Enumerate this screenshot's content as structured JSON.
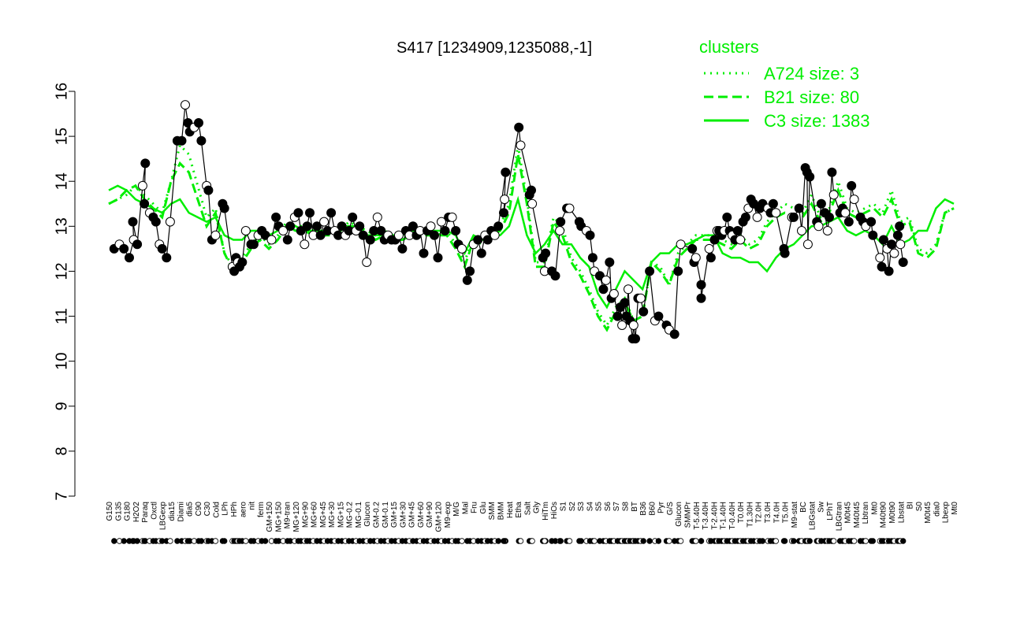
{
  "chart_data": {
    "type": "line",
    "title": "S417 [1234909,1235088,-1]",
    "xlabel": "",
    "ylabel": "",
    "ylim": [
      7,
      16
    ],
    "yticks": [
      7,
      8,
      9,
      10,
      11,
      12,
      13,
      14,
      15,
      16
    ],
    "xticks": [
      "G150",
      "G135",
      "G180",
      "H2O2",
      "Paraq",
      "Oxctl",
      "LBGexp",
      "dia15",
      "Diami",
      "dia5",
      "C90",
      "C30",
      "Cold",
      "LPh",
      "HPh",
      "aero",
      "nit",
      "ferm",
      "GM+150",
      "MG+150",
      "M9-tran",
      "MG+120",
      "MG+90",
      "MG+60",
      "MG+45",
      "MG+30",
      "MG+15",
      "MG-0.2",
      "MG-0.1",
      "Glucon",
      "GM-0.2",
      "GM-0.1",
      "GM+15",
      "GM+30",
      "GM+45",
      "GM+60",
      "GM+90",
      "GM+120",
      "M9-exp",
      "M/G",
      "Mal",
      "Fru",
      "Glu",
      "SMM",
      "BMM",
      "Heat",
      "Etha",
      "Salt",
      "Gly",
      "HiTm",
      "HiOs",
      "S1",
      "S2",
      "S3",
      "S4",
      "S5",
      "S6",
      "S7",
      "S8",
      "BT",
      "B36",
      "B60",
      "Pyr",
      "G/S",
      "Glucon",
      "SMMPr",
      "T-5.40H",
      "T-3.40H",
      "T-2.40H",
      "T-1.40H",
      "T-0.40H",
      "T0.0H",
      "T1.30H",
      "T2.0H",
      "T3.0H",
      "T4.0H",
      "T5.0H",
      "M9-stat",
      "BC",
      "LBGstat",
      "Sw",
      "LPhT",
      "LBGtran",
      "M0t45",
      "M40t45",
      "Lbtran",
      "Mt0",
      "M40t90",
      "M0t90",
      "Lbstat",
      "BI",
      "S0",
      "M0t45",
      "dia0",
      "Lbexp",
      "Mt0"
    ],
    "series": [
      {
        "name": "A724 size: 3",
        "style": "dotted",
        "values": [
          13.5,
          13.6,
          13.7,
          13.9,
          13.7,
          13.5,
          13.3,
          14.0,
          14.8,
          14.6,
          13.9,
          13.2,
          13.4,
          12.4,
          12.1,
          12.3,
          12.6,
          12.8,
          12.6,
          12.8,
          13.1,
          13.0,
          13.0,
          12.9,
          12.9,
          12.9,
          12.9,
          13.1,
          13.0,
          12.9,
          12.8,
          12.9,
          12.8,
          12.8,
          12.9,
          12.9,
          12.9,
          12.8,
          12.9,
          12.6,
          12.2,
          12.8,
          12.7,
          12.8,
          13.0,
          13.5,
          14.8,
          13.6,
          12.2,
          12.2,
          13.2,
          13.0,
          12.3,
          12.0,
          11.6,
          11.1,
          10.8,
          11.2,
          11.4,
          10.9,
          11.0,
          12.2,
          12.1,
          11.7,
          12.4,
          12.6,
          12.8,
          12.8,
          12.8,
          12.7,
          12.6,
          12.8,
          12.6,
          12.7,
          13.1,
          13.3,
          13.5,
          13.4,
          13.3,
          13.7,
          13.2,
          13.4,
          14.0,
          13.4,
          13.3,
          13.4,
          13.5,
          13.3,
          13.8,
          13.1,
          13.2,
          12.5,
          12.4,
          12.6,
          13.3,
          13.4
        ]
      },
      {
        "name": "B21 size: 80",
        "style": "dashed",
        "values": [
          13.5,
          13.6,
          13.8,
          13.9,
          13.6,
          13.4,
          13.2,
          14.0,
          14.4,
          14.2,
          13.6,
          13.0,
          13.3,
          12.4,
          12.0,
          12.2,
          12.5,
          12.7,
          12.5,
          12.7,
          13.0,
          12.9,
          12.9,
          12.8,
          12.8,
          12.8,
          12.9,
          13.0,
          12.9,
          12.8,
          12.7,
          12.8,
          12.7,
          12.7,
          12.8,
          12.8,
          12.8,
          12.8,
          12.8,
          12.5,
          12.1,
          12.7,
          12.6,
          12.8,
          12.9,
          13.3,
          14.6,
          13.5,
          12.1,
          12.1,
          13.1,
          12.8,
          12.2,
          11.9,
          11.5,
          11.0,
          10.7,
          11.1,
          11.3,
          10.9,
          11.0,
          12.2,
          12.0,
          11.7,
          12.3,
          12.5,
          12.7,
          12.7,
          12.7,
          12.6,
          12.5,
          12.7,
          12.5,
          12.6,
          13.0,
          13.2,
          13.3,
          13.2,
          13.2,
          13.5,
          13.1,
          13.3,
          13.8,
          13.3,
          13.2,
          13.3,
          13.4,
          13.2,
          13.6,
          13.0,
          13.1,
          12.4,
          12.3,
          12.5,
          13.3,
          13.4
        ]
      },
      {
        "name": "C3 size: 1383",
        "style": "solid",
        "values": [
          13.8,
          13.9,
          13.8,
          13.6,
          13.5,
          13.4,
          13.3,
          13.5,
          13.6,
          13.3,
          13.2,
          13.1,
          13.2,
          12.8,
          12.7,
          12.7,
          12.9,
          12.9,
          12.8,
          12.9,
          13.0,
          13.0,
          12.9,
          12.9,
          12.9,
          12.9,
          13.0,
          13.0,
          13.0,
          12.8,
          12.8,
          12.8,
          12.8,
          12.8,
          12.9,
          12.9,
          12.9,
          12.9,
          12.9,
          12.8,
          12.4,
          12.8,
          12.7,
          12.8,
          12.8,
          13.0,
          13.6,
          12.8,
          12.4,
          12.6,
          12.9,
          12.6,
          12.6,
          12.3,
          12.1,
          11.5,
          11.2,
          11.6,
          12.0,
          11.8,
          11.6,
          12.2,
          12.4,
          12.4,
          12.6,
          12.6,
          12.7,
          12.8,
          12.8,
          12.4,
          12.3,
          12.3,
          12.2,
          12.2,
          12.0,
          12.3,
          12.5,
          12.6,
          12.8,
          13.0,
          13.0,
          13.1,
          13.2,
          12.9,
          12.8,
          12.9,
          12.8,
          12.6,
          13.0,
          12.6,
          12.7,
          12.9,
          12.9,
          13.4,
          13.6,
          13.5
        ]
      }
    ],
    "points": [
      {
        "x": 0.6,
        "y": 12.5
      },
      {
        "x": 1.2,
        "y": 12.6
      },
      {
        "x": 1.7,
        "y": 12.5
      },
      {
        "x": 2.3,
        "y": 12.3
      },
      {
        "x": 2.8,
        "y": 12.7
      },
      {
        "x": 2.7,
        "y": 13.1
      },
      {
        "x": 3.2,
        "y": 12.6
      },
      {
        "x": 3.8,
        "y": 13.9
      },
      {
        "x": 4.1,
        "y": 14.4
      },
      {
        "x": 4.0,
        "y": 13.5
      },
      {
        "x": 4.6,
        "y": 13.3
      },
      {
        "x": 5.0,
        "y": 13.2
      },
      {
        "x": 5.3,
        "y": 13.1
      },
      {
        "x": 5.7,
        "y": 12.6
      },
      {
        "x": 6.0,
        "y": 12.5
      },
      {
        "x": 6.5,
        "y": 12.3
      },
      {
        "x": 6.9,
        "y": 13.1
      },
      {
        "x": 7.7,
        "y": 14.9
      },
      {
        "x": 8.2,
        "y": 14.9
      },
      {
        "x": 8.6,
        "y": 15.7
      },
      {
        "x": 8.9,
        "y": 15.3
      },
      {
        "x": 9.1,
        "y": 15.1
      },
      {
        "x": 9.6,
        "y": 15.2
      },
      {
        "x": 10.1,
        "y": 15.3
      },
      {
        "x": 10.4,
        "y": 14.9
      },
      {
        "x": 11.0,
        "y": 13.9
      },
      {
        "x": 11.2,
        "y": 13.8
      },
      {
        "x": 11.6,
        "y": 12.7
      },
      {
        "x": 12.0,
        "y": 12.8
      },
      {
        "x": 12.8,
        "y": 13.5
      },
      {
        "x": 13.0,
        "y": 13.4
      },
      {
        "x": 13.9,
        "y": 12.1
      },
      {
        "x": 14.1,
        "y": 12.0
      },
      {
        "x": 14.3,
        "y": 12.3
      },
      {
        "x": 14.5,
        "y": 12.2
      },
      {
        "x": 14.7,
        "y": 12.1
      },
      {
        "x": 15.0,
        "y": 12.2
      },
      {
        "x": 15.4,
        "y": 12.9
      },
      {
        "x": 16.0,
        "y": 12.6
      },
      {
        "x": 16.3,
        "y": 12.6
      },
      {
        "x": 16.8,
        "y": 12.8
      },
      {
        "x": 17.2,
        "y": 12.9
      },
      {
        "x": 17.6,
        "y": 12.8
      },
      {
        "x": 18.3,
        "y": 12.7
      },
      {
        "x": 18.8,
        "y": 13.2
      },
      {
        "x": 19.1,
        "y": 13.0
      },
      {
        "x": 19.6,
        "y": 12.9
      },
      {
        "x": 20.1,
        "y": 12.7
      },
      {
        "x": 20.4,
        "y": 13.0
      },
      {
        "x": 20.9,
        "y": 13.2
      },
      {
        "x": 21.3,
        "y": 13.3
      },
      {
        "x": 21.6,
        "y": 12.9
      },
      {
        "x": 22.0,
        "y": 12.6
      },
      {
        "x": 22.3,
        "y": 13.0
      },
      {
        "x": 22.6,
        "y": 13.3
      },
      {
        "x": 23.0,
        "y": 12.8
      },
      {
        "x": 23.4,
        "y": 13.0
      },
      {
        "x": 23.8,
        "y": 12.8
      },
      {
        "x": 24.2,
        "y": 13.1
      },
      {
        "x": 24.6,
        "y": 12.9
      },
      {
        "x": 25.0,
        "y": 13.3
      },
      {
        "x": 25.4,
        "y": 12.9
      },
      {
        "x": 25.8,
        "y": 12.8
      },
      {
        "x": 26.2,
        "y": 13.0
      },
      {
        "x": 26.6,
        "y": 12.8
      },
      {
        "x": 27.0,
        "y": 12.9
      },
      {
        "x": 27.4,
        "y": 13.2
      },
      {
        "x": 27.8,
        "y": 12.9
      },
      {
        "x": 28.2,
        "y": 13.0
      },
      {
        "x": 28.6,
        "y": 12.8
      },
      {
        "x": 29.0,
        "y": 12.2
      },
      {
        "x": 29.4,
        "y": 12.7
      },
      {
        "x": 29.8,
        "y": 12.9
      },
      {
        "x": 30.2,
        "y": 13.2
      },
      {
        "x": 30.6,
        "y": 12.9
      },
      {
        "x": 31.0,
        "y": 12.7
      },
      {
        "x": 31.4,
        "y": 12.8
      },
      {
        "x": 31.8,
        "y": 12.7
      },
      {
        "x": 32.2,
        "y": 12.7
      },
      {
        "x": 32.6,
        "y": 12.8
      },
      {
        "x": 33.0,
        "y": 12.5
      },
      {
        "x": 33.4,
        "y": 12.9
      },
      {
        "x": 33.8,
        "y": 12.8
      },
      {
        "x": 34.2,
        "y": 13.0
      },
      {
        "x": 34.6,
        "y": 12.8
      },
      {
        "x": 35.0,
        "y": 12.9
      },
      {
        "x": 35.4,
        "y": 12.4
      },
      {
        "x": 35.8,
        "y": 12.9
      },
      {
        "x": 36.2,
        "y": 13.0
      },
      {
        "x": 36.6,
        "y": 12.8
      },
      {
        "x": 37.0,
        "y": 12.3
      },
      {
        "x": 37.4,
        "y": 13.1
      },
      {
        "x": 37.8,
        "y": 12.9
      },
      {
        "x": 38.2,
        "y": 13.2
      },
      {
        "x": 38.6,
        "y": 13.2
      },
      {
        "x": 39.0,
        "y": 12.9
      },
      {
        "x": 39.3,
        "y": 12.6
      },
      {
        "x": 39.7,
        "y": 12.5
      },
      {
        "x": 40.3,
        "y": 11.8
      },
      {
        "x": 40.6,
        "y": 12.0
      },
      {
        "x": 41.0,
        "y": 12.6
      },
      {
        "x": 41.5,
        "y": 12.7
      },
      {
        "x": 41.9,
        "y": 12.4
      },
      {
        "x": 42.3,
        "y": 12.8
      },
      {
        "x": 42.6,
        "y": 12.7
      },
      {
        "x": 43.0,
        "y": 12.9
      },
      {
        "x": 43.4,
        "y": 12.8
      },
      {
        "x": 43.8,
        "y": 13.0
      },
      {
        "x": 44.6,
        "y": 14.2
      },
      {
        "x": 44.5,
        "y": 13.6
      },
      {
        "x": 44.4,
        "y": 13.3
      },
      {
        "x": 46.1,
        "y": 15.2
      },
      {
        "x": 46.3,
        "y": 14.8
      },
      {
        "x": 47.5,
        "y": 13.8
      },
      {
        "x": 47.3,
        "y": 13.7
      },
      {
        "x": 47.6,
        "y": 13.5
      },
      {
        "x": 48.8,
        "y": 12.3
      },
      {
        "x": 49.1,
        "y": 12.4
      },
      {
        "x": 49.0,
        "y": 12.0
      },
      {
        "x": 49.8,
        "y": 12.0
      },
      {
        "x": 50.2,
        "y": 11.9
      },
      {
        "x": 50.7,
        "y": 12.9
      },
      {
        "x": 50.8,
        "y": 13.1
      },
      {
        "x": 51.5,
        "y": 13.4
      },
      {
        "x": 51.8,
        "y": 13.4
      },
      {
        "x": 52.9,
        "y": 13.1
      },
      {
        "x": 53.1,
        "y": 13.0
      },
      {
        "x": 53.7,
        "y": 12.9
      },
      {
        "x": 54.1,
        "y": 12.8
      },
      {
        "x": 54.4,
        "y": 12.3
      },
      {
        "x": 54.6,
        "y": 12.0
      },
      {
        "x": 55.2,
        "y": 11.9
      },
      {
        "x": 55.6,
        "y": 11.6
      },
      {
        "x": 55.9,
        "y": 11.8
      },
      {
        "x": 56.3,
        "y": 12.2
      },
      {
        "x": 56.5,
        "y": 11.4
      },
      {
        "x": 56.8,
        "y": 11.5
      },
      {
        "x": 57.2,
        "y": 11.0
      },
      {
        "x": 57.5,
        "y": 11.2
      },
      {
        "x": 57.7,
        "y": 10.8
      },
      {
        "x": 58.0,
        "y": 11.3
      },
      {
        "x": 58.2,
        "y": 11.0
      },
      {
        "x": 58.4,
        "y": 11.6
      },
      {
        "x": 58.6,
        "y": 10.9
      },
      {
        "x": 58.9,
        "y": 10.5
      },
      {
        "x": 59.0,
        "y": 10.8
      },
      {
        "x": 59.2,
        "y": 10.5
      },
      {
        "x": 59.5,
        "y": 11.4
      },
      {
        "x": 59.8,
        "y": 11.4
      },
      {
        "x": 60.1,
        "y": 11.1
      },
      {
        "x": 60.8,
        "y": 12.0
      },
      {
        "x": 61.4,
        "y": 10.9
      },
      {
        "x": 61.8,
        "y": 11.0
      },
      {
        "x": 62.7,
        "y": 10.8
      },
      {
        "x": 63.0,
        "y": 10.7
      },
      {
        "x": 63.6,
        "y": 10.6
      },
      {
        "x": 64.0,
        "y": 12.0
      },
      {
        "x": 64.3,
        "y": 12.6
      },
      {
        "x": 65.6,
        "y": 12.5
      },
      {
        "x": 65.8,
        "y": 12.2
      },
      {
        "x": 66.0,
        "y": 12.3
      },
      {
        "x": 66.6,
        "y": 11.7
      },
      {
        "x": 66.6,
        "y": 11.4
      },
      {
        "x": 67.5,
        "y": 12.5
      },
      {
        "x": 67.7,
        "y": 12.3
      },
      {
        "x": 68.1,
        "y": 12.7
      },
      {
        "x": 68.4,
        "y": 12.9
      },
      {
        "x": 68.6,
        "y": 12.9
      },
      {
        "x": 68.9,
        "y": 12.8
      },
      {
        "x": 69.2,
        "y": 12.9
      },
      {
        "x": 69.5,
        "y": 13.2
      },
      {
        "x": 69.8,
        "y": 12.9
      },
      {
        "x": 70.1,
        "y": 12.8
      },
      {
        "x": 70.4,
        "y": 12.7
      },
      {
        "x": 70.7,
        "y": 12.9
      },
      {
        "x": 71.0,
        "y": 12.7
      },
      {
        "x": 71.3,
        "y": 13.1
      },
      {
        "x": 71.6,
        "y": 13.2
      },
      {
        "x": 71.9,
        "y": 13.4
      },
      {
        "x": 72.2,
        "y": 13.6
      },
      {
        "x": 72.5,
        "y": 13.5
      },
      {
        "x": 72.9,
        "y": 13.2
      },
      {
        "x": 73.2,
        "y": 13.4
      },
      {
        "x": 73.5,
        "y": 13.5
      },
      {
        "x": 74.1,
        "y": 13.4
      },
      {
        "x": 74.4,
        "y": 13.3
      },
      {
        "x": 74.7,
        "y": 13.5
      },
      {
        "x": 75.0,
        "y": 13.3
      },
      {
        "x": 75.9,
        "y": 12.5
      },
      {
        "x": 76.0,
        "y": 12.4
      },
      {
        "x": 76.8,
        "y": 13.2
      },
      {
        "x": 77.0,
        "y": 13.2
      },
      {
        "x": 77.6,
        "y": 13.4
      },
      {
        "x": 77.9,
        "y": 12.9
      },
      {
        "x": 78.3,
        "y": 14.3
      },
      {
        "x": 78.5,
        "y": 14.2
      },
      {
        "x": 78.6,
        "y": 12.6
      },
      {
        "x": 78.8,
        "y": 14.1
      },
      {
        "x": 79.6,
        "y": 13.1
      },
      {
        "x": 79.8,
        "y": 13.0
      },
      {
        "x": 80.1,
        "y": 13.5
      },
      {
        "x": 80.5,
        "y": 13.3
      },
      {
        "x": 80.8,
        "y": 12.9
      },
      {
        "x": 81.0,
        "y": 13.2
      },
      {
        "x": 81.3,
        "y": 14.2
      },
      {
        "x": 81.5,
        "y": 13.7
      },
      {
        "x": 82.2,
        "y": 13.3
      },
      {
        "x": 82.5,
        "y": 13.4
      },
      {
        "x": 82.8,
        "y": 13.3
      },
      {
        "x": 83.2,
        "y": 13.1
      },
      {
        "x": 83.5,
        "y": 13.9
      },
      {
        "x": 83.8,
        "y": 13.6
      },
      {
        "x": 84.5,
        "y": 13.2
      },
      {
        "x": 84.8,
        "y": 13.1
      },
      {
        "x": 85.1,
        "y": 13.0
      },
      {
        "x": 85.7,
        "y": 13.1
      },
      {
        "x": 85.9,
        "y": 12.8
      },
      {
        "x": 86.7,
        "y": 12.3
      },
      {
        "x": 86.9,
        "y": 12.1
      },
      {
        "x": 87.1,
        "y": 12.7
      },
      {
        "x": 87.5,
        "y": 12.5
      },
      {
        "x": 87.7,
        "y": 12.0
      },
      {
        "x": 88.0,
        "y": 12.6
      },
      {
        "x": 88.3,
        "y": 12.4
      },
      {
        "x": 88.7,
        "y": 12.8
      },
      {
        "x": 88.9,
        "y": 13.0
      },
      {
        "x": 89.0,
        "y": 12.6
      },
      {
        "x": 89.3,
        "y": 12.2
      }
    ],
    "legend": {
      "title": "clusters",
      "position": "top-right",
      "entries": [
        "A724 size: 3",
        "B21 size: 80",
        "C3 size: 1383"
      ]
    },
    "grid": false
  },
  "colors": {
    "cluster_line": "#00ee00",
    "axis": "#000000",
    "point_fill_dark": "#000000",
    "point_fill_light": "#ffffff"
  }
}
